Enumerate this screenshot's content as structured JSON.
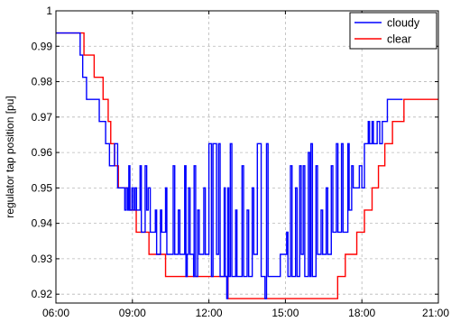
{
  "chart_data": {
    "type": "line",
    "xlabel": "",
    "ylabel": "regulator tap position [pu]",
    "xlim_hours": [
      6,
      21
    ],
    "ylim": [
      0.9175,
      1.0
    ],
    "x_ticks": [
      {
        "value": 6,
        "label": "06:00"
      },
      {
        "value": 9,
        "label": "09:00"
      },
      {
        "value": 12,
        "label": "12:00"
      },
      {
        "value": 15,
        "label": "15:00"
      },
      {
        "value": 18,
        "label": "18:00"
      },
      {
        "value": 21,
        "label": "21:00"
      }
    ],
    "y_ticks": [
      {
        "value": 0.92,
        "label": "0.92"
      },
      {
        "value": 0.93,
        "label": "0.93"
      },
      {
        "value": 0.94,
        "label": "0.94"
      },
      {
        "value": 0.95,
        "label": "0.95"
      },
      {
        "value": 0.96,
        "label": "0.96"
      },
      {
        "value": 0.97,
        "label": "0.97"
      },
      {
        "value": 0.98,
        "label": "0.98"
      },
      {
        "value": 0.99,
        "label": "0.99"
      },
      {
        "value": 1.0,
        "label": "1"
      }
    ],
    "grid": true,
    "legend_position": "top-right",
    "series": [
      {
        "name": "cloudy",
        "color": "#0000ff",
        "step": true,
        "points": [
          [
            6.0,
            0.99375
          ],
          [
            6.95,
            0.9875
          ],
          [
            7.05,
            0.98125
          ],
          [
            7.2,
            0.975
          ],
          [
            7.7,
            0.96875
          ],
          [
            7.95,
            0.9625
          ],
          [
            8.1,
            0.95625
          ],
          [
            8.3,
            0.9625
          ],
          [
            8.42,
            0.95
          ],
          [
            8.7,
            0.94375
          ],
          [
            8.76,
            0.95
          ],
          [
            8.82,
            0.94375
          ],
          [
            8.86,
            0.95625
          ],
          [
            8.9,
            0.94375
          ],
          [
            8.98,
            0.95
          ],
          [
            9.04,
            0.94375
          ],
          [
            9.1,
            0.95
          ],
          [
            9.16,
            0.94375
          ],
          [
            9.3,
            0.95625
          ],
          [
            9.35,
            0.9375
          ],
          [
            9.5,
            0.95625
          ],
          [
            9.56,
            0.94375
          ],
          [
            9.62,
            0.95
          ],
          [
            9.7,
            0.9375
          ],
          [
            9.9,
            0.94375
          ],
          [
            9.95,
            0.93125
          ],
          [
            10.1,
            0.94375
          ],
          [
            10.15,
            0.9375
          ],
          [
            10.3,
            0.95
          ],
          [
            10.35,
            0.93125
          ],
          [
            10.6,
            0.95625
          ],
          [
            10.66,
            0.93125
          ],
          [
            10.7,
            0.93125
          ],
          [
            10.8,
            0.94375
          ],
          [
            10.86,
            0.93125
          ],
          [
            11.0,
            0.93125
          ],
          [
            11.05,
            0.95625
          ],
          [
            11.1,
            0.925
          ],
          [
            11.15,
            0.93125
          ],
          [
            11.2,
            0.95
          ],
          [
            11.26,
            0.93125
          ],
          [
            11.4,
            0.925
          ],
          [
            11.42,
            0.95625
          ],
          [
            11.48,
            0.925
          ],
          [
            11.56,
            0.94375
          ],
          [
            11.62,
            0.93125
          ],
          [
            11.8,
            0.95
          ],
          [
            11.86,
            0.93125
          ],
          [
            12.0,
            0.9625
          ],
          [
            12.1,
            0.925
          ],
          [
            12.16,
            0.9625
          ],
          [
            12.3,
            0.93125
          ],
          [
            12.38,
            0.9625
          ],
          [
            12.44,
            0.925
          ],
          [
            12.6,
            0.95
          ],
          [
            12.64,
            0.925
          ],
          [
            12.7,
            0.91875
          ],
          [
            12.74,
            0.95
          ],
          [
            12.78,
            0.925
          ],
          [
            12.84,
            0.9625
          ],
          [
            12.9,
            0.925
          ],
          [
            13.0,
            0.925
          ],
          [
            13.05,
            0.94375
          ],
          [
            13.1,
            0.925
          ],
          [
            13.3,
            0.95625
          ],
          [
            13.36,
            0.925
          ],
          [
            13.5,
            0.94375
          ],
          [
            13.56,
            0.925
          ],
          [
            13.7,
            0.95
          ],
          [
            13.76,
            0.93125
          ],
          [
            13.9,
            0.9625
          ],
          [
            14.05,
            0.925
          ],
          [
            14.2,
            0.91875
          ],
          [
            14.26,
            0.9625
          ],
          [
            14.32,
            0.925
          ],
          [
            14.7,
            0.925
          ],
          [
            14.8,
            0.93125
          ],
          [
            15.0,
            0.93125
          ],
          [
            15.05,
            0.9375
          ],
          [
            15.1,
            0.925
          ],
          [
            15.2,
            0.95625
          ],
          [
            15.26,
            0.925
          ],
          [
            15.4,
            0.95
          ],
          [
            15.46,
            0.925
          ],
          [
            15.56,
            0.95625
          ],
          [
            15.62,
            0.93125
          ],
          [
            15.7,
            0.95625
          ],
          [
            15.76,
            0.925
          ],
          [
            15.9,
            0.96
          ],
          [
            15.96,
            0.925
          ],
          [
            16.0,
            0.9625
          ],
          [
            16.06,
            0.925
          ],
          [
            16.2,
            0.95625
          ],
          [
            16.26,
            0.93125
          ],
          [
            16.4,
            0.94375
          ],
          [
            16.46,
            0.93125
          ],
          [
            16.6,
            0.95
          ],
          [
            16.66,
            0.93125
          ],
          [
            16.8,
            0.95625
          ],
          [
            16.86,
            0.9375
          ],
          [
            17.0,
            0.9625
          ],
          [
            17.06,
            0.9375
          ],
          [
            17.2,
            0.9625
          ],
          [
            17.26,
            0.9375
          ],
          [
            17.45,
            0.9625
          ],
          [
            17.5,
            0.94375
          ],
          [
            17.6,
            0.95625
          ],
          [
            17.66,
            0.95
          ],
          [
            17.9,
            0.95625
          ],
          [
            18.0,
            0.95
          ],
          [
            18.1,
            0.9625
          ],
          [
            18.25,
            0.96875
          ],
          [
            18.3,
            0.9625
          ],
          [
            18.4,
            0.96875
          ],
          [
            18.45,
            0.9625
          ],
          [
            18.6,
            0.96875
          ],
          [
            18.7,
            0.9625
          ],
          [
            18.8,
            0.96875
          ],
          [
            19.0,
            0.975
          ],
          [
            19.6,
            0.975
          ]
        ]
      },
      {
        "name": "clear",
        "color": "#ff0000",
        "step": true,
        "points": [
          [
            6.0,
            0.99375
          ],
          [
            7.1,
            0.9875
          ],
          [
            7.5,
            0.98125
          ],
          [
            7.85,
            0.975
          ],
          [
            8.05,
            0.96875
          ],
          [
            8.15,
            0.9625
          ],
          [
            8.3,
            0.95625
          ],
          [
            8.45,
            0.95
          ],
          [
            8.9,
            0.94375
          ],
          [
            9.15,
            0.9375
          ],
          [
            9.65,
            0.93125
          ],
          [
            10.3,
            0.925
          ],
          [
            12.75,
            0.91875
          ],
          [
            17.05,
            0.925
          ],
          [
            17.35,
            0.93125
          ],
          [
            17.8,
            0.9375
          ],
          [
            18.1,
            0.94375
          ],
          [
            18.4,
            0.95
          ],
          [
            18.65,
            0.95625
          ],
          [
            18.9,
            0.9625
          ],
          [
            19.2,
            0.96875
          ],
          [
            19.65,
            0.975
          ],
          [
            21.0,
            0.975
          ]
        ]
      }
    ]
  }
}
